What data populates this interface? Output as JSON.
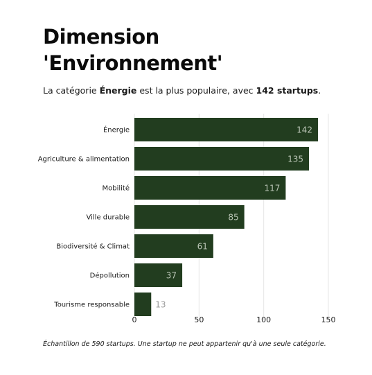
{
  "title_line1": "Dimension",
  "title_line2": "'Environnement'",
  "subtitle": {
    "prefix": "La catégorie ",
    "highlight": "Énergie",
    "middle": " est la plus populaire, avec ",
    "count": "142 startups",
    "suffix": "."
  },
  "footnote": "Échantillon de 590 startups. Une startup ne peut appartenir qu'à une seule catégorie.",
  "colors": {
    "bar": "#223d1f",
    "label_inside": "#b9c4b5",
    "label_outside": "#9a9a9a",
    "grid": "#e6e6e6"
  },
  "chart_data": {
    "type": "bar",
    "orientation": "horizontal",
    "categories": [
      "Énergie",
      "Agriculture & alimentation",
      "Mobilité",
      "Ville durable",
      "Biodiversité & Climat",
      "Dépollution",
      "Tourisme responsable"
    ],
    "values": [
      142,
      135,
      117,
      85,
      61,
      37,
      13
    ],
    "xlim": [
      0,
      150
    ],
    "xticks": [
      0,
      50,
      100,
      150
    ],
    "grid": true,
    "data_labels": true
  }
}
